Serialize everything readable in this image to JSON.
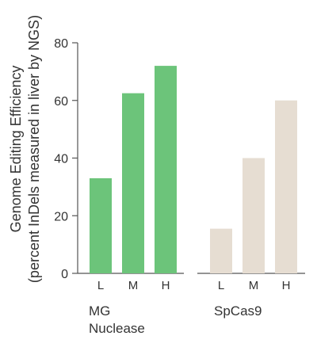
{
  "chart_data": {
    "type": "bar",
    "ylabel": "Genome Editing Efficiency",
    "ylabel_sub": "(percent InDels measured in liver by NGS)",
    "ylim": [
      0,
      80
    ],
    "yticks": [
      0,
      20,
      40,
      60,
      80
    ],
    "grid": false,
    "legend": "none",
    "groups": [
      {
        "label_line1": "MG",
        "label_line2": "Nuclease",
        "color": "#6cc47a",
        "categories": [
          "L",
          "M",
          "H"
        ],
        "values": [
          33,
          62.5,
          72
        ]
      },
      {
        "label_line1": "SpCas9",
        "label_line2": "",
        "color": "#e6ddd2",
        "categories": [
          "L",
          "M",
          "H"
        ],
        "values": [
          15.5,
          40,
          60
        ]
      }
    ]
  }
}
